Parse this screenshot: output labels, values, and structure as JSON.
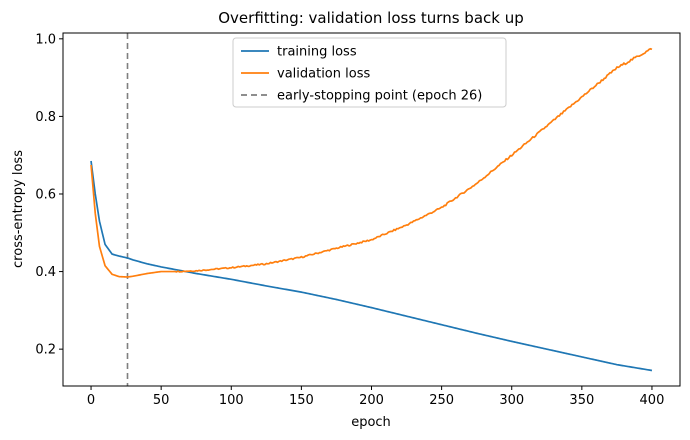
{
  "chart_data": {
    "type": "line",
    "title": "Overfitting: validation loss turns back up",
    "xlabel": "epoch",
    "ylabel": "cross-entropy loss",
    "xlim": [
      -20,
      420
    ],
    "ylim": [
      0.105,
      1.015
    ],
    "xticks": [
      0,
      50,
      100,
      150,
      200,
      250,
      300,
      350,
      400
    ],
    "yticks": [
      0.2,
      0.4,
      0.6,
      0.8,
      1.0
    ],
    "ytick_labels": [
      "0.2",
      "0.4",
      "0.6",
      "0.8",
      "1.0"
    ],
    "grid": false,
    "legend_placement": "upper-center",
    "series": [
      {
        "name": "training loss",
        "color": "#1f77b4",
        "x": [
          0,
          3,
          6,
          10,
          15,
          20,
          26,
          30,
          40,
          50,
          75,
          100,
          125,
          150,
          175,
          200,
          225,
          250,
          275,
          300,
          325,
          350,
          375,
          400
        ],
        "y": [
          0.685,
          0.6,
          0.53,
          0.47,
          0.445,
          0.44,
          0.435,
          0.43,
          0.42,
          0.412,
          0.395,
          0.38,
          0.363,
          0.347,
          0.328,
          0.307,
          0.285,
          0.263,
          0.241,
          0.22,
          0.2,
          0.18,
          0.16,
          0.145
        ]
      },
      {
        "name": "validation loss",
        "color": "#ff7f0e",
        "x": [
          0,
          3,
          6,
          10,
          15,
          20,
          26,
          30,
          40,
          50,
          60,
          75,
          100,
          125,
          150,
          175,
          200,
          225,
          250,
          275,
          300,
          325,
          350,
          375,
          400
        ],
        "y": [
          0.675,
          0.55,
          0.465,
          0.415,
          0.393,
          0.387,
          0.386,
          0.388,
          0.395,
          0.4,
          0.4,
          0.402,
          0.41,
          0.42,
          0.437,
          0.46,
          0.482,
          0.52,
          0.565,
          0.627,
          0.7,
          0.775,
          0.85,
          0.925,
          0.975
        ]
      }
    ],
    "vline": {
      "x": 26,
      "label": "early-stopping point (epoch 26)",
      "color": "#7f7f7f",
      "style": "dashed"
    }
  }
}
